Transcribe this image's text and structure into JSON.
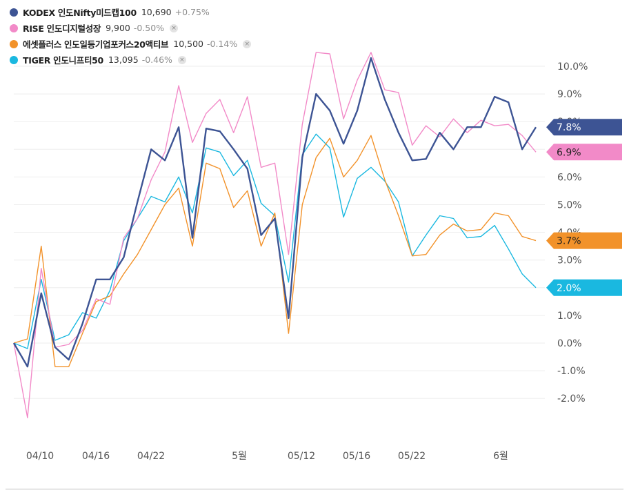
{
  "legend": [
    {
      "name": "KODEX 인도Nifty미드캡100",
      "price": "10,690",
      "change": "+0.75%",
      "color": "#3d5494",
      "closable": false
    },
    {
      "name": "RISE 인도디지털성장",
      "price": "9,900",
      "change": "-0.50%",
      "color": "#f28ac8",
      "closable": true,
      "close_icon": "×"
    },
    {
      "name": "에셋플러스 인도일등기업포커스20액티브",
      "price": "10,500",
      "change": "-0.14%",
      "color": "#f2922a",
      "closable": true,
      "close_icon": "×"
    },
    {
      "name": "TIGER 인도니프티50",
      "price": "13,095",
      "change": "-0.46%",
      "color": "#1ab8e0",
      "closable": true,
      "close_icon": "×"
    }
  ],
  "chart_data": {
    "type": "line",
    "x_tick_labels": [
      "04/10",
      "04/16",
      "04/22",
      "5월",
      "05/12",
      "05/16",
      "05/22",
      "6월"
    ],
    "y_tick_labels": [
      "10.0%",
      "9.0%",
      "8.0%",
      "7.0%",
      "6.0%",
      "5.0%",
      "4.0%",
      "3.0%",
      "2.0%",
      "1.0%",
      "0.0%",
      "-1.0%",
      "-2.0%"
    ],
    "ylim": [
      -3.5,
      10.5
    ],
    "grid": true,
    "legend_position": "top-left",
    "series": [
      {
        "name": "KODEX 인도Nifty미드캡100",
        "color": "#3d5494",
        "end_label": "7.8%",
        "values": [
          0.0,
          -0.85,
          1.8,
          -0.15,
          -0.6,
          0.7,
          2.3,
          2.3,
          3.1,
          5.1,
          7.0,
          6.6,
          7.8,
          3.8,
          7.75,
          7.65,
          7.0,
          6.3,
          3.9,
          4.5,
          0.9,
          6.7,
          9.0,
          8.4,
          7.2,
          8.4,
          10.3,
          8.8,
          7.6,
          6.6,
          6.65,
          7.6,
          7.0,
          7.8,
          7.8,
          8.9,
          8.7,
          7.0,
          7.8
        ]
      },
      {
        "name": "RISE 인도디지털성장",
        "color": "#f28ac8",
        "end_label": "6.9%",
        "values": [
          0.0,
          -2.7,
          2.7,
          -0.15,
          -0.05,
          0.45,
          1.6,
          1.4,
          3.8,
          4.5,
          5.9,
          6.9,
          9.3,
          7.25,
          8.3,
          8.8,
          7.6,
          8.9,
          6.35,
          6.5,
          3.2,
          7.9,
          10.5,
          10.45,
          8.1,
          9.5,
          10.5,
          9.15,
          9.05,
          7.15,
          7.85,
          7.45,
          8.1,
          7.6,
          8.05,
          7.85,
          7.9,
          7.5,
          6.9
        ]
      },
      {
        "name": "에셋플러스 인도일등기업포커스20액티브",
        "color": "#f2922a",
        "end_label": "3.7%",
        "values": [
          0.0,
          0.15,
          3.5,
          -0.85,
          -0.85,
          0.35,
          1.5,
          1.7,
          2.5,
          3.2,
          4.1,
          5.0,
          5.6,
          3.5,
          6.5,
          6.3,
          4.9,
          5.5,
          3.5,
          4.7,
          0.35,
          5.0,
          6.7,
          7.4,
          6.0,
          6.6,
          7.5,
          5.9,
          4.6,
          3.15,
          3.2,
          3.9,
          4.3,
          4.05,
          4.1,
          4.7,
          4.6,
          3.85,
          3.7
        ]
      },
      {
        "name": "TIGER 인도니프티50",
        "color": "#1ab8e0",
        "end_label": "2.0%",
        "values": [
          0.0,
          -0.2,
          2.3,
          0.1,
          0.3,
          1.1,
          0.9,
          1.9,
          3.7,
          4.5,
          5.3,
          5.1,
          6.0,
          4.7,
          7.05,
          6.9,
          6.05,
          6.6,
          5.05,
          4.6,
          2.2,
          6.8,
          7.55,
          7.05,
          4.55,
          5.95,
          6.35,
          5.85,
          5.1,
          3.15,
          3.9,
          4.6,
          4.5,
          3.8,
          3.85,
          4.25,
          3.4,
          2.5,
          2.0
        ]
      }
    ]
  }
}
